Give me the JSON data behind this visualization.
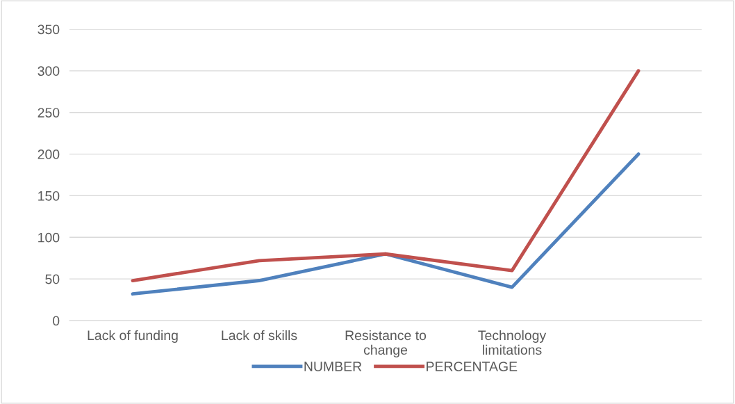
{
  "chart_data": {
    "type": "line",
    "categories": [
      "Lack of funding",
      "Lack of skills",
      "Resistance to\nchange",
      "Technology\nlimitations",
      null
    ],
    "series": [
      {
        "name": "NUMBER",
        "color": "#4f81bd",
        "values": [
          32,
          48,
          80,
          40,
          200
        ]
      },
      {
        "name": "PERCENTAGE",
        "color": "#c0504d",
        "values": [
          48,
          72,
          80,
          60,
          300
        ]
      }
    ],
    "ylim": [
      0,
      350
    ],
    "yticks": [
      0,
      50,
      100,
      150,
      200,
      250,
      300,
      350
    ],
    "grid": "y",
    "legend": "bottom",
    "marker": "none",
    "line_style": "solid"
  }
}
